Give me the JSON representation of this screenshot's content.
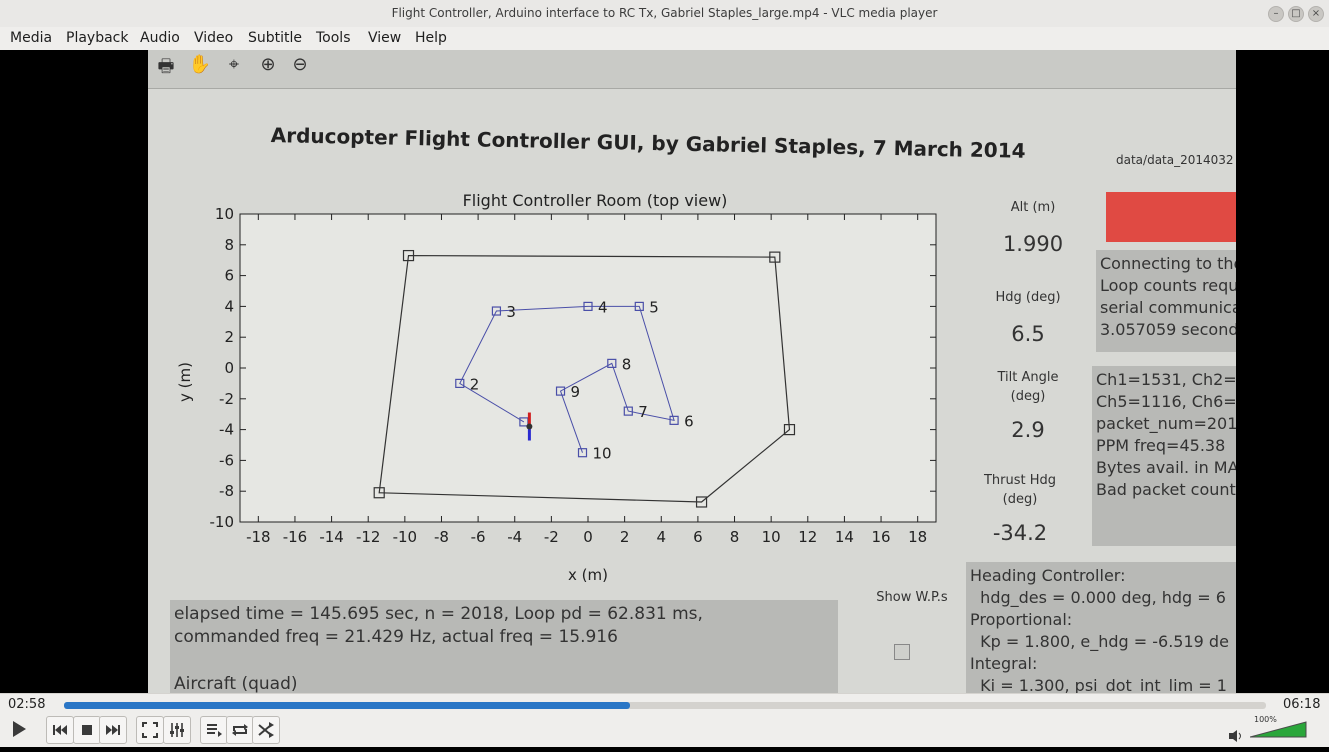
{
  "window": {
    "title": "Flight Controller, Arduino interface to RC Tx, Gabriel Staples_large.mp4 - VLC media player",
    "buttons": [
      "–",
      "□",
      "×"
    ]
  },
  "menu": [
    "Media",
    "Playback",
    "Audio",
    "Video",
    "Subtitle",
    "Tools",
    "View",
    "Help"
  ],
  "gui": {
    "title": "Arducopter Flight Controller GUI, by Gabriel Staples, 7 March 2014",
    "data_path": "data/data_2014032",
    "alt_label": "Alt (m)",
    "alt_value": "1.990",
    "hdg_label": "Hdg (deg)",
    "hdg_value": "6.5",
    "tilt_label_1": "Tilt Angle",
    "tilt_label_2": "(deg)",
    "tilt_value": "2.9",
    "thrust_label_1": "Thrust Hdg",
    "thrust_label_2": "(deg)",
    "thrust_value": "-34.2",
    "conn_lines": [
      "Connecting to the",
      "Loop counts requi",
      "serial communicat",
      "3.057059 seconds"
    ],
    "ch_lines": [
      "Ch1=1531, Ch2=",
      "Ch5=1116, Ch6=",
      "packet_num=201",
      "PPM freq=45.38",
      "Bytes avail. in MA",
      "Bad packet count"
    ],
    "elapsed_line_1": "elapsed time = 145.695 sec, n = 2018, Loop pd = 62.831 ms,",
    "elapsed_line_2": "commanded freq = 21.429 Hz, actual freq = 15.916",
    "aircraft_label": "Aircraft (quad)",
    "show_wps": "Show W.P.s",
    "heading_lines": [
      "Heading Controller:",
      "  hdg_des = 0.000 deg, hdg = 6",
      "Proportional:",
      "  Kp = 1.800, e_hdg = -6.519 de",
      "Integral:",
      "  Ki = 1.300, psi_dot_int_lim = 1"
    ]
  },
  "player": {
    "elapsed": "02:58",
    "total": "06:18",
    "progress": 0.471,
    "volume": "100%"
  },
  "chart_data": {
    "type": "scatter",
    "title": "Flight Controller Room (top view)",
    "xlabel": "x (m)",
    "ylabel": "y (m)",
    "xlim": [
      -19,
      19
    ],
    "ylim": [
      -10,
      10
    ],
    "xticks": [
      "-18",
      "-16",
      "-14",
      "-12",
      "-10",
      "-8",
      "-6",
      "-4",
      "-2",
      "0",
      "2",
      "4",
      "6",
      "8",
      "10",
      "12",
      "14",
      "16",
      "18"
    ],
    "yticks": [
      "10",
      "8",
      "6",
      "4",
      "2",
      "0",
      "-2",
      "-4",
      "-6",
      "-8",
      "-10"
    ],
    "room_corners": [
      [
        -9.8,
        7.3
      ],
      [
        10.2,
        7.2
      ],
      [
        11.0,
        -4.0
      ],
      [
        6.2,
        -8.7
      ],
      [
        -11.4,
        -8.1
      ]
    ],
    "waypoints": [
      {
        "label": "",
        "x": -3.5,
        "y": -3.5
      },
      {
        "label": "2",
        "x": -7.0,
        "y": -1.0
      },
      {
        "label": "3",
        "x": -5.0,
        "y": 3.7
      },
      {
        "label": "4",
        "x": 0.0,
        "y": 4.0
      },
      {
        "label": "5",
        "x": 2.8,
        "y": 4.0
      },
      {
        "label": "6",
        "x": 4.7,
        "y": -3.4
      },
      {
        "label": "7",
        "x": 2.2,
        "y": -2.8
      },
      {
        "label": "8",
        "x": 1.3,
        "y": 0.3
      },
      {
        "label": "9",
        "x": -1.5,
        "y": -1.5
      },
      {
        "label": "10",
        "x": -0.3,
        "y": -5.5
      }
    ],
    "aircraft": {
      "x": -3.2,
      "y": -3.8
    }
  }
}
